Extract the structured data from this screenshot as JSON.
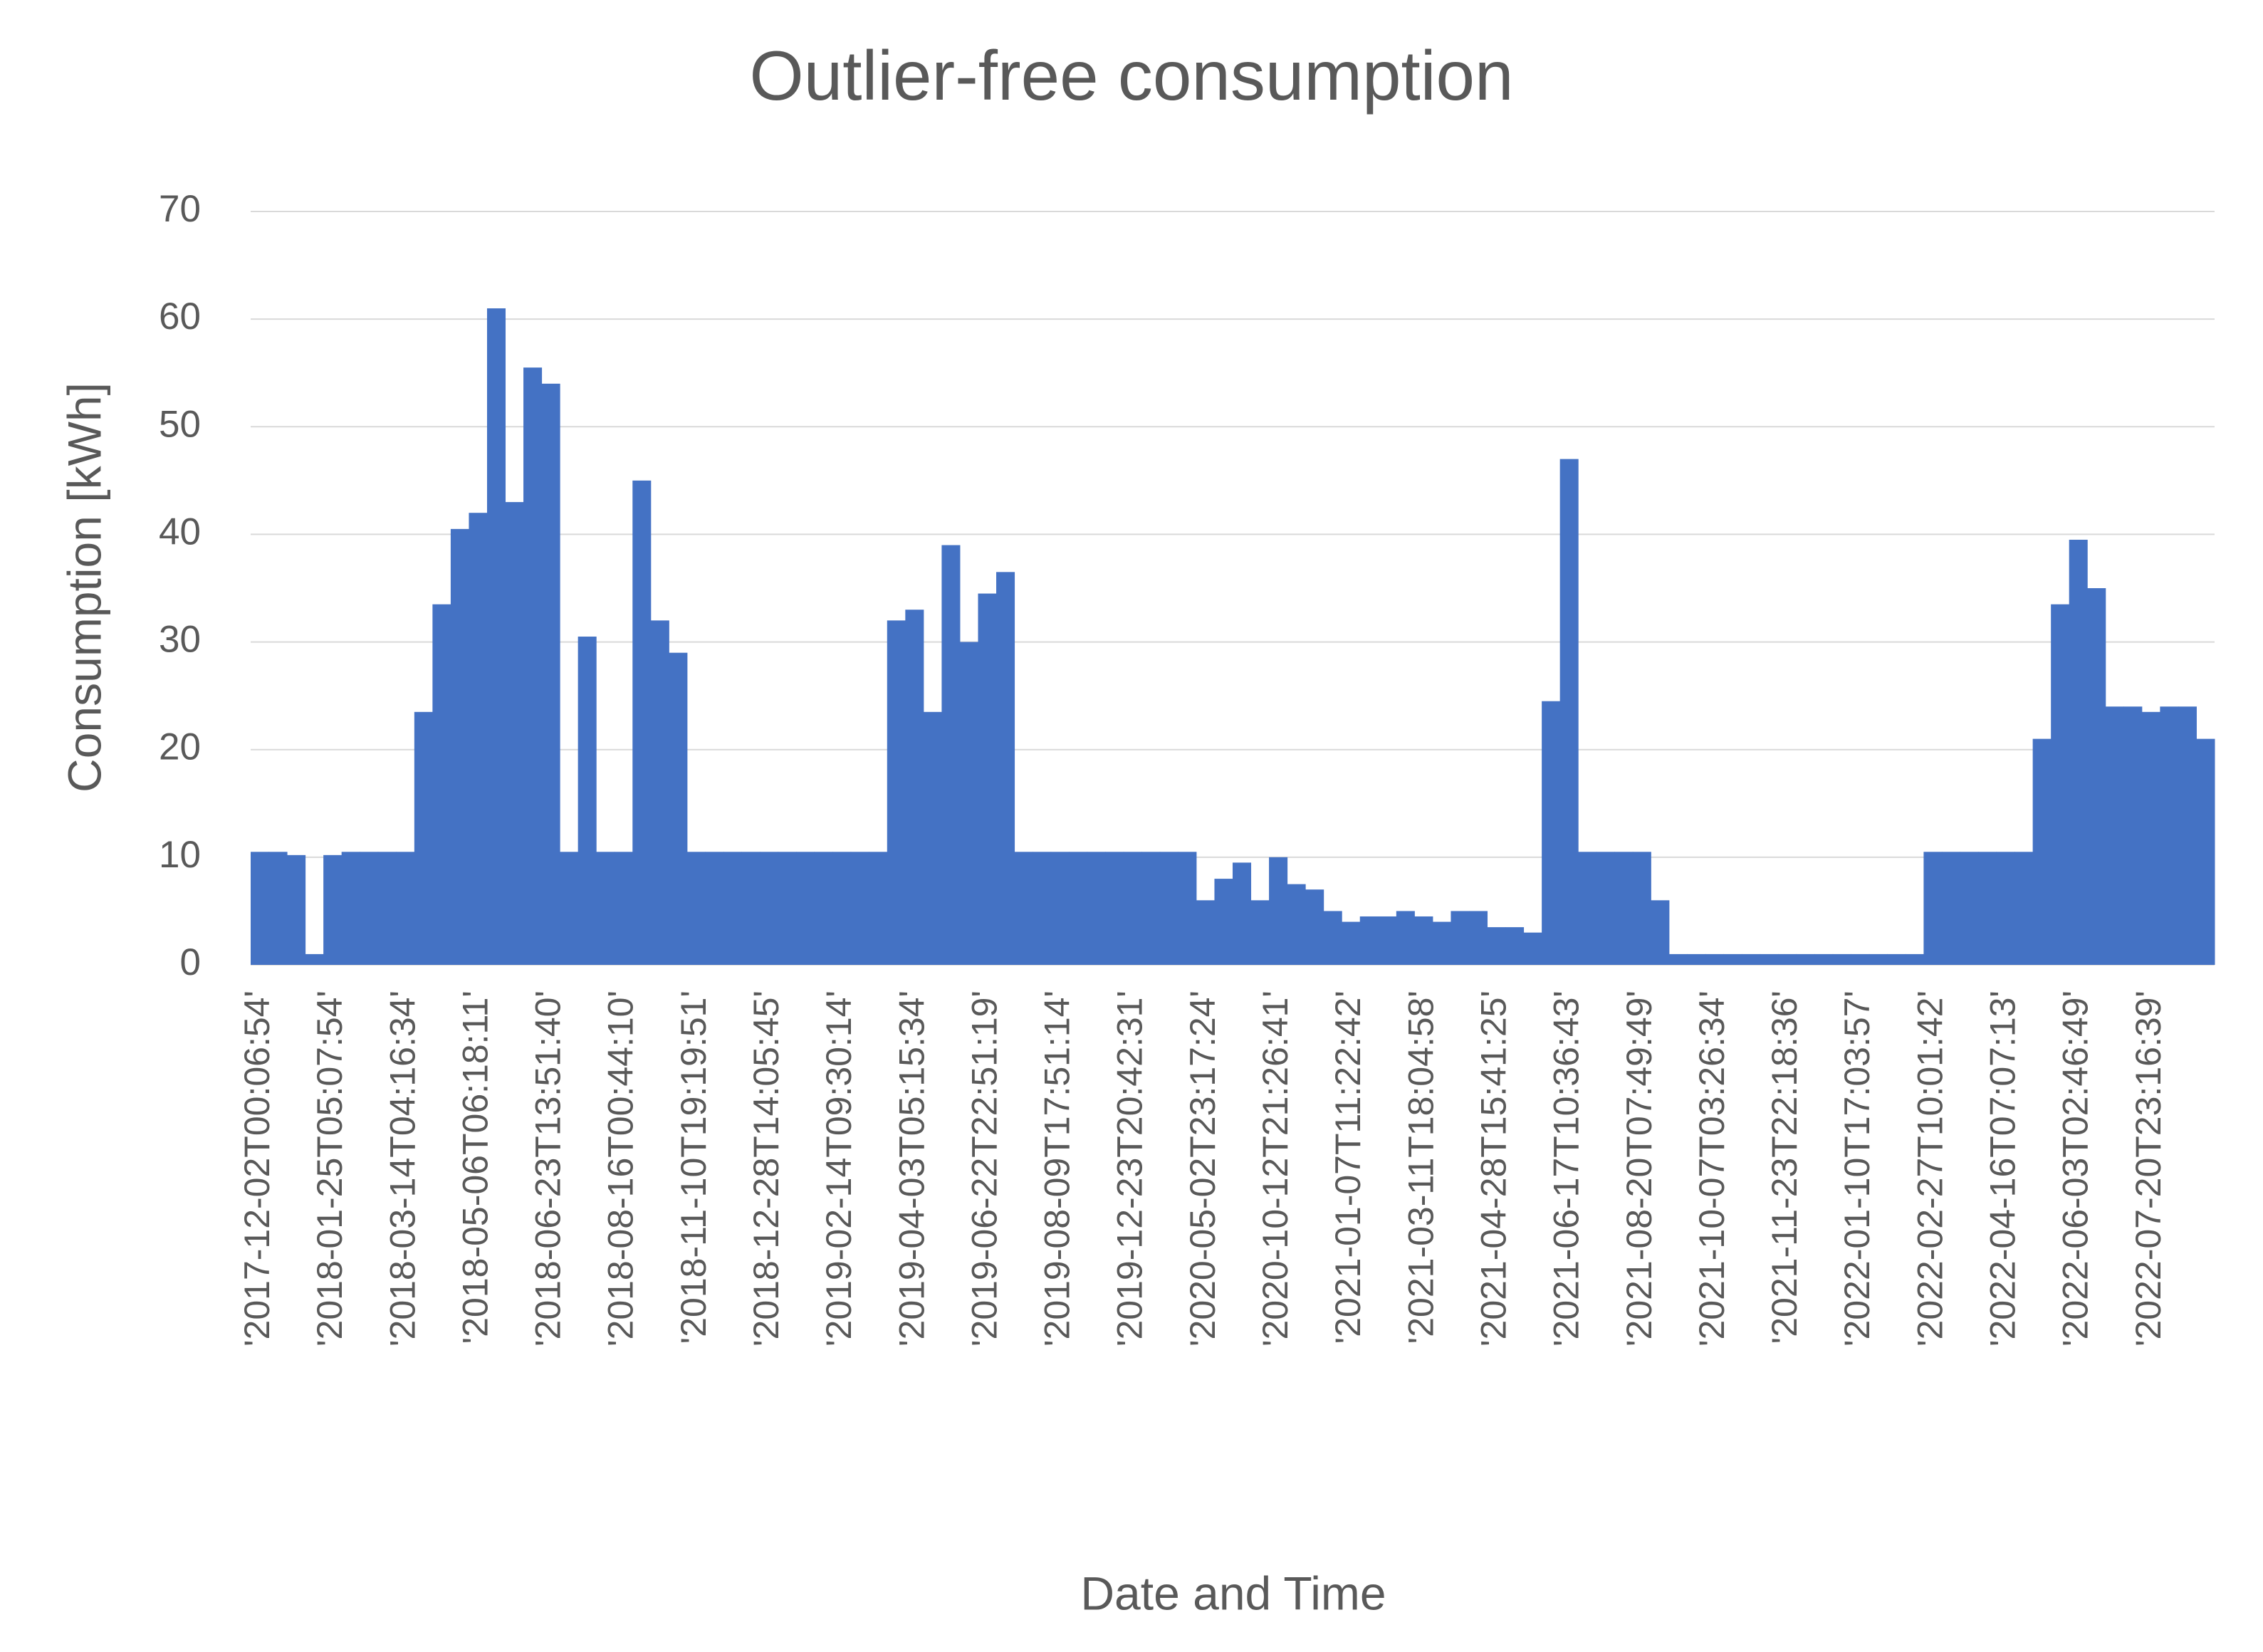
{
  "chart_data": {
    "type": "bar",
    "title": "Outlier-free consumption",
    "x_label": "Date and Time",
    "y_label": "Consumption [kWh]",
    "categories": [
      "'2017-12-02T00:06:54'",
      null,
      null,
      null,
      "'2018-01-25T05:07:54'",
      null,
      null,
      null,
      "'2018-03-14T04:16:34'",
      null,
      null,
      null,
      "'2018-05-06T06:18:11'",
      null,
      null,
      null,
      "'2018-06-23T13:51:40'",
      null,
      null,
      null,
      "'2018-08-16T00:44:10'",
      null,
      null,
      null,
      "'2018-11-10T19:19:51'",
      null,
      null,
      null,
      "'2018-12-28T14:05:45'",
      null,
      null,
      null,
      "'2019-02-14T09:30:14'",
      null,
      null,
      null,
      "'2019-04-03T05:15:34'",
      null,
      null,
      null,
      "'2019-06-22T22:51:19'",
      null,
      null,
      null,
      "'2019-08-09T17:51:14'",
      null,
      null,
      null,
      "'2019-12-23T20:42:31'",
      null,
      null,
      null,
      "'2020-05-02T23:17:24'",
      null,
      null,
      null,
      "'2020-10-12T21:26:41'",
      null,
      null,
      null,
      "'2021-01-07T11:22:42'",
      null,
      null,
      null,
      "'2021-03-11T18:04:58'",
      null,
      null,
      null,
      "'2021-04-28T15:41:25'",
      null,
      null,
      null,
      "'2021-06-17T10:36:43'",
      null,
      null,
      null,
      "'2021-08-20T07:49:49'",
      null,
      null,
      null,
      "'2021-10-07T03:26:34'",
      null,
      null,
      null,
      "'2021-11-23T22:18:36'",
      null,
      null,
      null,
      "'2022-01-10T17:03:57'",
      null,
      null,
      null,
      "'2022-02-27T10:01:42'",
      null,
      null,
      null,
      "'2022-04-16T07:07:13'",
      null,
      null,
      null,
      "'2022-06-03T02:46:49'",
      null,
      null,
      null,
      "'2022-07-20T23:16:39'",
      null,
      null,
      null
    ],
    "values": [
      10.5,
      10.5,
      10.2,
      1,
      10.2,
      10.5,
      10.5,
      10.5,
      10.5,
      23.5,
      33.5,
      40.5,
      42,
      61,
      43,
      55.5,
      54,
      10.5,
      30.5,
      10.5,
      10.5,
      45,
      32,
      29,
      10.5,
      10.5,
      10.5,
      10.5,
      10.5,
      10.5,
      10.5,
      10.5,
      10.5,
      10.5,
      10.5,
      32,
      33,
      23.5,
      39,
      30,
      34.5,
      36.5,
      10.5,
      10.5,
      10.5,
      10.5,
      10.5,
      10.5,
      10.5,
      10.5,
      10.5,
      10.5,
      6,
      8,
      9.5,
      6,
      10,
      7.5,
      7,
      5,
      4,
      4.5,
      4.5,
      5,
      4.5,
      4,
      5,
      5,
      3.5,
      3.5,
      3,
      24.5,
      47,
      10.5,
      10.5,
      10.5,
      10.5,
      6,
      1,
      1,
      1,
      1,
      1,
      1,
      1,
      1,
      1,
      1,
      1,
      1,
      1,
      1,
      10.5,
      10.5,
      10.5,
      10.5,
      10.5,
      10.5,
      21,
      33.5,
      39.5,
      35,
      24,
      24,
      23.5,
      24,
      24,
      21
    ],
    "color": "#4472c4",
    "ylim": [
      0,
      70
    ],
    "yticks": [
      0,
      10,
      20,
      30,
      40,
      50,
      60,
      70
    ],
    "grid": true
  }
}
